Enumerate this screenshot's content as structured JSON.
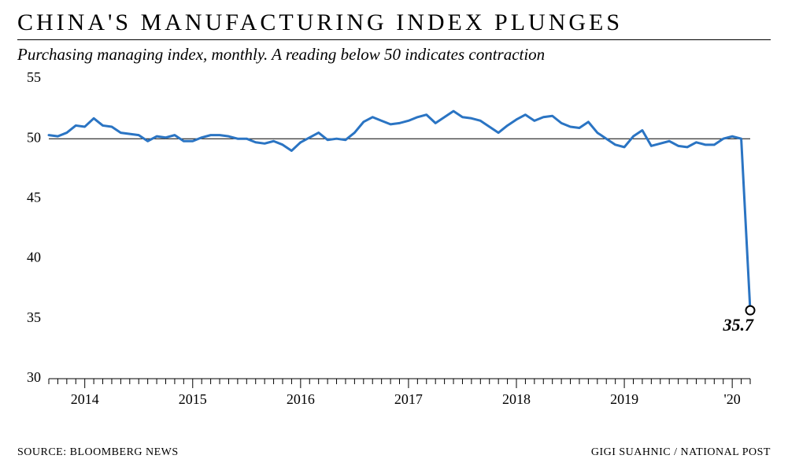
{
  "title": "CHINA'S MANUFACTURING INDEX PLUNGES",
  "subtitle": "Purchasing managing index, monthly. A reading below 50 indicates contraction",
  "footer": {
    "source_label": "SOURCE: BLOOMBERG NEWS",
    "credit": "GIGI SUAHNIC / NATIONAL POST"
  },
  "chart": {
    "type": "line",
    "background_color": "#ffffff",
    "line_color": "#2a74c3",
    "line_width": 3,
    "axis_color": "#000000",
    "axis_width": 1,
    "tick_color": "#000000",
    "tick_length_major": 12,
    "tick_length_minor": 7,
    "y_tick_fontsize": 18,
    "x_tick_fontsize": 18,
    "ylim": [
      30,
      55
    ],
    "ytick_step": 5,
    "yticks": [
      30,
      35,
      40,
      45,
      50,
      55
    ],
    "x_index_range": [
      0,
      78
    ],
    "x_year_ticks": [
      {
        "index": 4,
        "label": "2014"
      },
      {
        "index": 16,
        "label": "2015"
      },
      {
        "index": 28,
        "label": "2016"
      },
      {
        "index": 40,
        "label": "2017"
      },
      {
        "index": 52,
        "label": "2018"
      },
      {
        "index": 64,
        "label": "2019"
      },
      {
        "index": 76,
        "label": "'20"
      }
    ],
    "values": [
      50.3,
      50.2,
      50.5,
      51.1,
      51.0,
      51.7,
      51.1,
      51.0,
      50.5,
      50.4,
      50.3,
      49.8,
      50.2,
      50.1,
      50.3,
      49.8,
      49.8,
      50.1,
      50.3,
      50.3,
      50.2,
      50.0,
      50.0,
      49.7,
      49.6,
      49.8,
      49.5,
      49.0,
      49.7,
      50.1,
      50.5,
      49.9,
      50.0,
      49.9,
      50.5,
      51.4,
      51.8,
      51.5,
      51.2,
      51.3,
      51.5,
      51.8,
      52.0,
      51.3,
      51.8,
      52.3,
      51.8,
      51.7,
      51.5,
      51.0,
      50.5,
      51.1,
      51.6,
      52.0,
      51.5,
      51.8,
      51.9,
      51.3,
      51.0,
      50.9,
      51.4,
      50.5,
      50.0,
      49.5,
      49.3,
      50.2,
      50.7,
      49.4,
      49.6,
      49.8,
      49.4,
      49.3,
      49.7,
      49.5,
      49.5,
      50.0,
      50.2,
      50.0,
      35.7
    ],
    "final_point": {
      "index": 78,
      "value": 35.7,
      "label": "35.7",
      "marker_outer": "#000000",
      "marker_inner": "#ffffff",
      "marker_radius": 5.5,
      "marker_stroke": 2,
      "label_fontsize": 22,
      "label_style": "italic",
      "label_weight": "bold"
    }
  }
}
